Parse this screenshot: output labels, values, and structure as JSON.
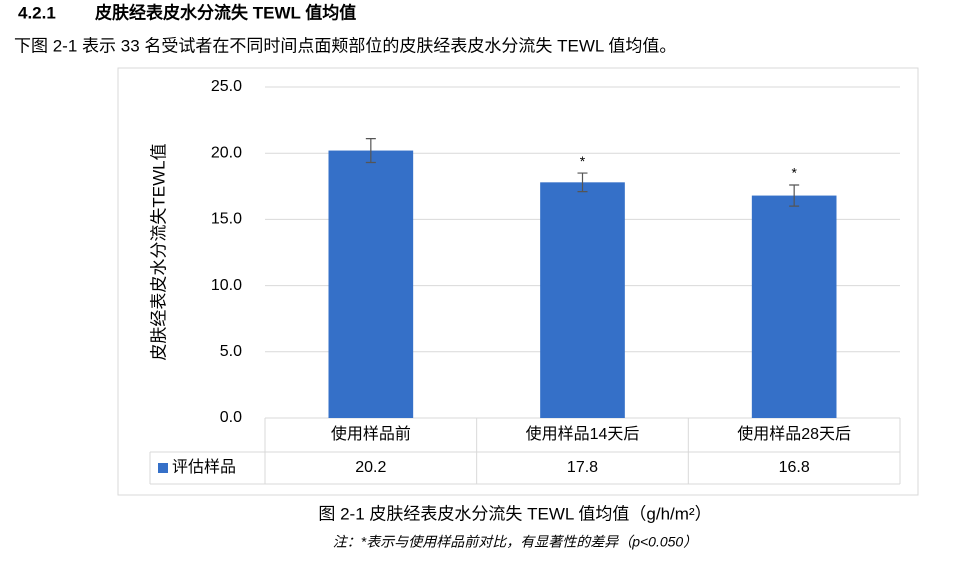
{
  "heading": {
    "number": "4.2.1",
    "title": "皮肤经表皮水分流失 TEWL 值均值"
  },
  "intro": "下图 2-1 表示 33 名受试者在不同时间点面颊部位的皮肤经表皮水分流失 TEWL 值均值。",
  "chart_data": {
    "type": "bar",
    "y_label": "皮肤经表皮水分流失TEWL值",
    "categories": [
      "使用样品前",
      "使用样品14天后",
      "使用样品28天后"
    ],
    "series": [
      {
        "name": "评估样品",
        "color": "#3570c8",
        "values": [
          20.2,
          17.8,
          16.8
        ],
        "errors": [
          0.9,
          0.7,
          0.8
        ]
      }
    ],
    "significance": [
      null,
      "*",
      "*"
    ],
    "ylim": [
      0,
      25
    ],
    "yticks": [
      {
        "value": 0,
        "label": "0.0"
      },
      {
        "value": 5,
        "label": "5.0"
      },
      {
        "value": 10,
        "label": "10.0"
      },
      {
        "value": 15,
        "label": "15.0"
      },
      {
        "value": 20,
        "label": "20.0"
      },
      {
        "value": 25,
        "label": "25.0"
      }
    ],
    "grid": true,
    "data_table": true
  },
  "caption": "图 2-1 皮肤经表皮水分流失 TEWL 值均值（g/h/m²）",
  "note": "注：*表示与使用样品前对比，有显著性的差异（p<0.050）"
}
